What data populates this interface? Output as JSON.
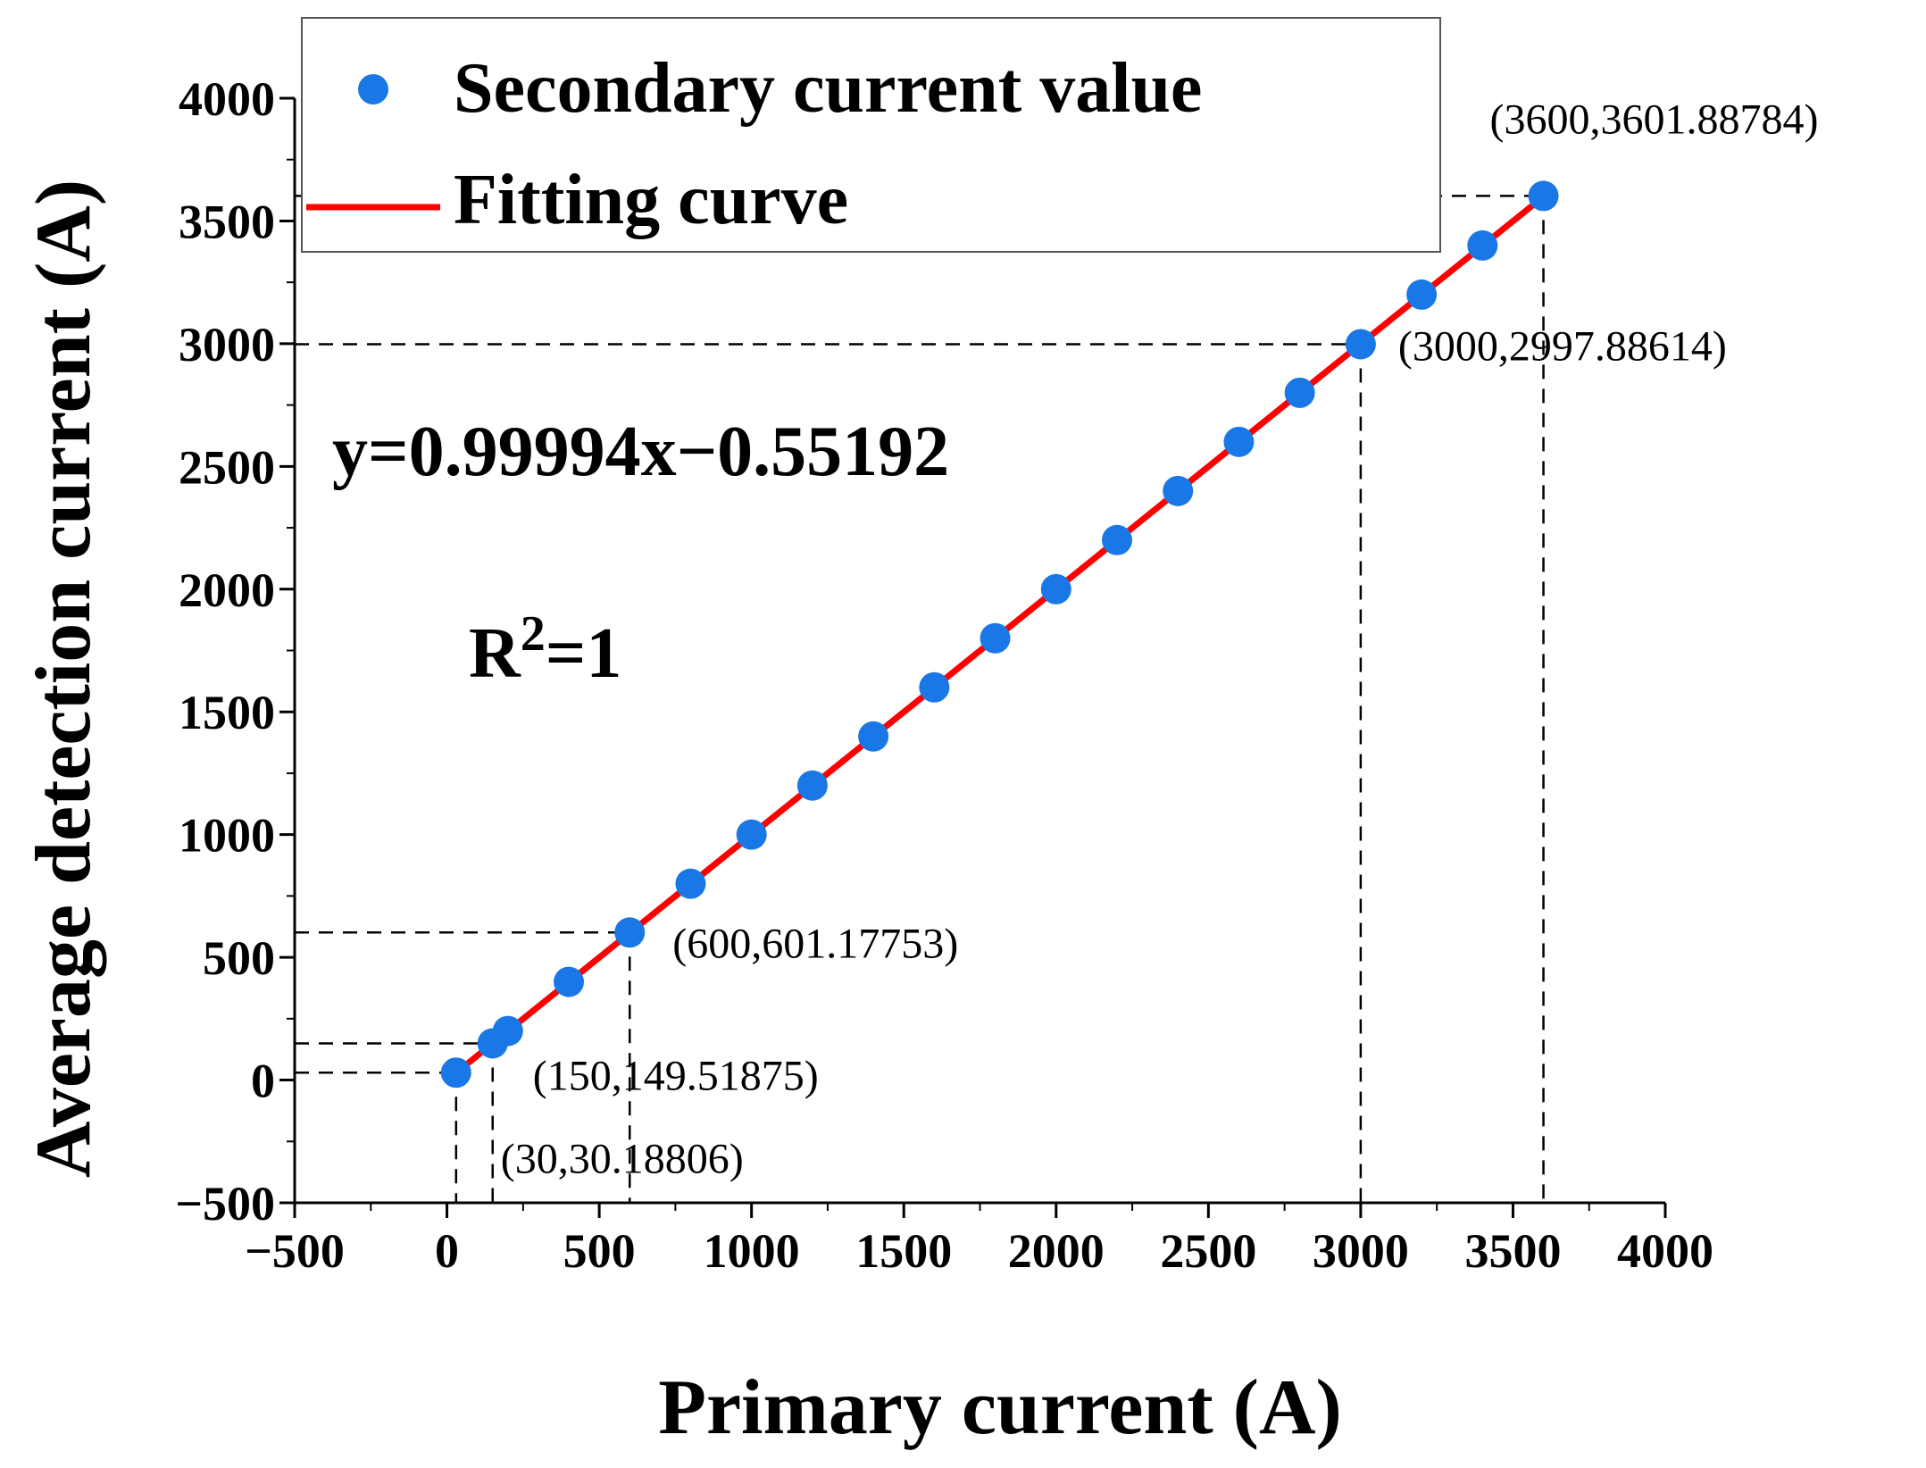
{
  "chart_data": {
    "type": "scatter",
    "xlabel": "Primary current (A)",
    "ylabel": "Average detection current (A)",
    "xlim": [
      -500,
      4000
    ],
    "ylim": [
      -500,
      4000
    ],
    "xticks": [
      -500,
      0,
      500,
      1000,
      1500,
      2000,
      2500,
      3000,
      3500,
      4000
    ],
    "yticks": [
      -500,
      0,
      500,
      1000,
      1500,
      2000,
      2500,
      3000,
      3500,
      4000
    ],
    "xtick_labels": [
      "−500",
      "0",
      "500",
      "1000",
      "1500",
      "2000",
      "2500",
      "3000",
      "3500",
      "4000"
    ],
    "ytick_labels": [
      "−500",
      "0",
      "500",
      "1000",
      "1500",
      "2000",
      "2500",
      "3000",
      "3500",
      "4000"
    ],
    "grid": false,
    "legend_position": "top",
    "series": [
      {
        "name": "Secondary current value",
        "kind": "scatter",
        "color": "#1a78e6",
        "x": [
          30,
          150,
          200,
          400,
          600,
          800,
          1000,
          1200,
          1400,
          1600,
          1800,
          2000,
          2200,
          2400,
          2600,
          2800,
          3000,
          3200,
          3400,
          3600
        ],
        "y": [
          30.18806,
          149.51875,
          200,
          400,
          601.17753,
          800,
          1000,
          1200,
          1400,
          1600,
          1800,
          2000,
          2200,
          2400,
          2600,
          2800,
          2997.88614,
          3200,
          3400,
          3601.88784
        ]
      },
      {
        "name": "Fitting curve",
        "kind": "line",
        "color": "#ff0000",
        "slope": 0.99994,
        "intercept": -0.55192,
        "x_range": [
          30,
          3600
        ]
      }
    ],
    "annotations": [
      {
        "x": 30,
        "y": 30.18806,
        "text": "(30,30.18806)"
      },
      {
        "x": 150,
        "y": 149.51875,
        "text": "(150,149.51875)"
      },
      {
        "x": 600,
        "y": 601.17753,
        "text": "(600,601.17753)"
      },
      {
        "x": 3000,
        "y": 2997.88614,
        "text": "(3000,2997.88614)"
      },
      {
        "x": 3600,
        "y": 3601.88784,
        "text": "(3600,3601.88784)"
      }
    ],
    "equation": "y=0.99994x−0.55192",
    "r2_base": "R",
    "r2_exp": "2",
    "r2_value": "=1"
  }
}
